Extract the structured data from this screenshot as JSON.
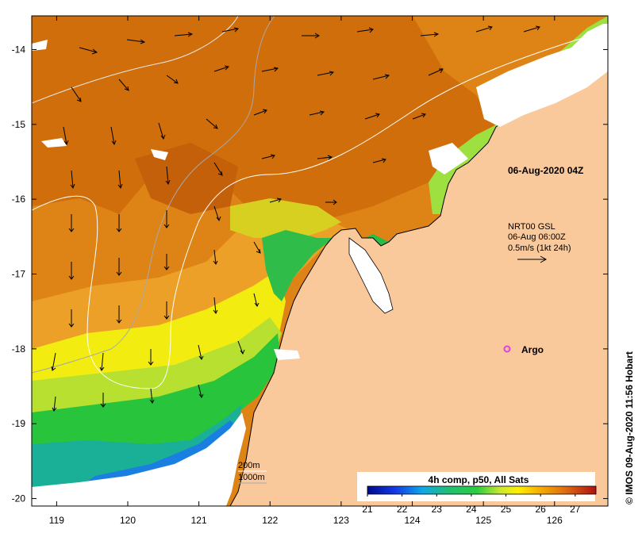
{
  "map": {
    "lon_range": [
      118.65,
      126.75
    ],
    "lat_range": [
      -20.1,
      -13.55
    ],
    "lon_ticks": [
      "119",
      "120",
      "121",
      "122",
      "123",
      "124",
      "125",
      "126"
    ],
    "lat_ticks": [
      "-14",
      "-15",
      "-16",
      "-17",
      "-18",
      "-19",
      "-20"
    ]
  },
  "annotations": {
    "timestamp": "06-Aug-2020 04Z",
    "current_source": "NRT00 GSL",
    "current_time": "06-Aug 06:00Z",
    "current_scale": "0.5m/s (1kt 24h)",
    "argo_label": "Argo",
    "contour_200": "200m",
    "contour_1000": "1000m"
  },
  "colorbar": {
    "title": "4h comp, p50, All Sats",
    "ticks": [
      "21",
      "22",
      "23",
      "24",
      "25",
      "26",
      "27"
    ],
    "range": [
      21,
      27.6
    ]
  },
  "credit": "© IMOS 09-Aug-2020 11:56 Hobart",
  "colors": {
    "land": "#f9c89b",
    "warm": "#d9760d",
    "argo_marker": "#e040e0"
  }
}
